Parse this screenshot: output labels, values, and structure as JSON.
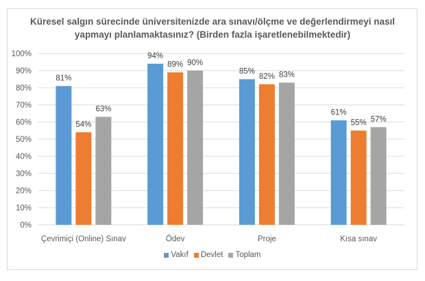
{
  "chart_data": {
    "type": "bar",
    "title": "Küresel salgın sürecinde üniversitenizde ara sınavı/ölçme ve değerlendirmeyi nasıl yapmayı planlamaktasınız? (Birden fazla işaretlenebilmektedir)",
    "title_lines": [
      "Küresel salgın sürecinde üniversitenizde ara sınavı/ölçme ve değerlendirmeyi nasıl",
      "yapmayı planlamaktasınız? (Birden fazla işaretlenebilmektedir)"
    ],
    "xlabel": "",
    "ylabel": "",
    "categories": [
      "Çevrimiçi (Online) Sınav",
      "Ödev",
      "Proje",
      "Kısa sınav"
    ],
    "series": [
      {
        "name": "Vakıf",
        "color": "#5b9bd5",
        "values": [
          81,
          94,
          85,
          61
        ],
        "labels": [
          "81%",
          "94%",
          "85%",
          "61%"
        ]
      },
      {
        "name": "Devlet",
        "color": "#ed7d31",
        "values": [
          54,
          89,
          82,
          55
        ],
        "labels": [
          "54%",
          "89%",
          "82%",
          "55%"
        ]
      },
      {
        "name": "Toplam",
        "color": "#a5a5a5",
        "values": [
          63,
          90,
          83,
          57
        ],
        "labels": [
          "63%",
          "90%",
          "83%",
          "57%"
        ]
      }
    ],
    "ylim": [
      0,
      100
    ],
    "yticks": [
      "0%",
      "10%",
      "20%",
      "30%",
      "40%",
      "50%",
      "60%",
      "70%",
      "80%",
      "90%",
      "100%"
    ],
    "grid": true,
    "legend_position": "bottom",
    "legend": [
      "Vakıf",
      "Devlet",
      "Toplam"
    ]
  }
}
